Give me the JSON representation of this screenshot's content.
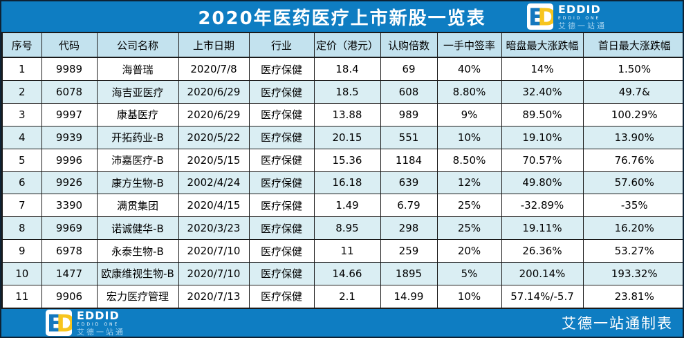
{
  "title": "2020年医药医疗上市新股一览表",
  "brand": {
    "name": "EDDID",
    "tagline": "EDDID ONE",
    "cn_name": "艾德一站通",
    "mark_letter_e": "E",
    "mark_letter_d": "D"
  },
  "footer": {
    "credit": "艾德一站通制表"
  },
  "table": {
    "headers": [
      "序号",
      "代码",
      "公司名称",
      "上市日期",
      "行业",
      "定价（港元）",
      "认购倍数",
      "一手中签率",
      "暗盘最大涨跌幅",
      "首日最大涨跌幅"
    ],
    "rows": [
      [
        "1",
        "9989",
        "海普瑞",
        "2020/7/8",
        "医疗保健",
        "18.4",
        "69",
        "40%",
        "14%",
        "1.50%"
      ],
      [
        "2",
        "6078",
        "海吉亚医疗",
        "2020/6/29",
        "医疗保健",
        "18.5",
        "608",
        "8.80%",
        "32.40%",
        "49.7&"
      ],
      [
        "3",
        "9997",
        "康基医疗",
        "2020/6/29",
        "医疗保健",
        "13.88",
        "989",
        "9%",
        "89.50%",
        "100.29%"
      ],
      [
        "4",
        "9939",
        "开拓药业-B",
        "2020/5/22",
        "医疗保健",
        "20.15",
        "551",
        "10%",
        "19.10%",
        "13.90%"
      ],
      [
        "5",
        "9996",
        "沛嘉医疗-B",
        "2020/5/15",
        "医疗保健",
        "15.36",
        "1184",
        "8.50%",
        "70.57%",
        "76.76%"
      ],
      [
        "6",
        "9926",
        "康方生物-B",
        "2002/4/24",
        "医疗保健",
        "16.18",
        "639",
        "12%",
        "49.80%",
        "57.60%"
      ],
      [
        "7",
        "3390",
        "满贯集团",
        "2020/4/15",
        "医疗保健",
        "1.49",
        "6.79",
        "25%",
        "-32.89%",
        "-35%"
      ],
      [
        "8",
        "9969",
        "诺诚健华-B",
        "2020/3/23",
        "医疗保健",
        "8.95",
        "298",
        "25%",
        "19.11%",
        "16.20%"
      ],
      [
        "9",
        "6978",
        "永泰生物-B",
        "2020/7/10",
        "医疗保健",
        "11",
        "259",
        "20%",
        "26.36%",
        "53.27%"
      ],
      [
        "10",
        "1477",
        "欧康维视生物-B",
        "2020/7/10",
        "医疗保健",
        "14.66",
        "1895",
        "5%",
        "200.14%",
        "193.32%"
      ],
      [
        "11",
        "9906",
        "宏力医疗管理",
        "2020/7/13",
        "医疗保健",
        "2.1",
        "14.99",
        "10%",
        "57.14%/-5.7",
        "23.81%"
      ]
    ]
  },
  "colors": {
    "banner_blue": "#0e7dc2",
    "stripe_blue": "#daeef3",
    "header_row_blue": "#c3e2ee",
    "logo_yellow": "#f7c51e",
    "logo_blue": "#1478be",
    "cn_text_blue": "#a5d2ee"
  }
}
